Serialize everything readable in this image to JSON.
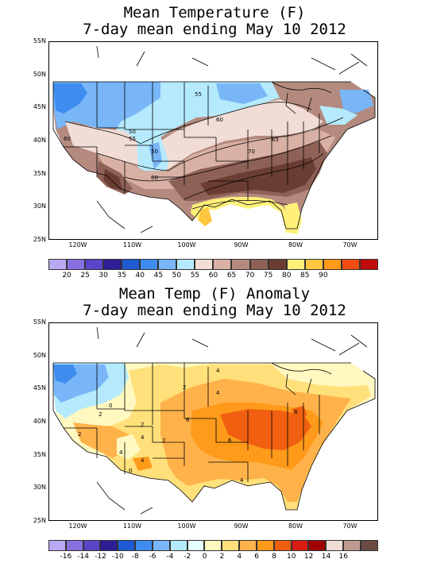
{
  "top": {
    "title_line1": "Mean Temperature (F)",
    "title_line2": "7-day mean ending May 10 2012",
    "lat_labels": [
      "55N",
      "50N",
      "45N",
      "40N",
      "35N",
      "30N",
      "25N"
    ],
    "lon_labels": [
      "120W",
      "110W",
      "100W",
      "90W",
      "80W",
      "70W"
    ],
    "contour_labels": [
      "55",
      "60",
      "65",
      "70",
      "50",
      "55",
      "50",
      "60",
      "60"
    ],
    "colorbar": {
      "colors": [
        "#b9a8f2",
        "#8870e0",
        "#5a46c8",
        "#2d1e96",
        "#1e5ad2",
        "#3e8cf0",
        "#78b6f7",
        "#b5eafd",
        "#f1dcd6",
        "#d8b0a4",
        "#b48a7e",
        "#8e6156",
        "#6a3d32",
        "#fff07a",
        "#ffc640",
        "#ff9a1a",
        "#f44c12",
        "#c00c0c"
      ],
      "labels": [
        "20",
        "25",
        "30",
        "35",
        "40",
        "45",
        "50",
        "55",
        "60",
        "65",
        "70",
        "75",
        "80",
        "85",
        "90"
      ]
    }
  },
  "bottom": {
    "title_line1": "Mean Temp (F) Anomaly",
    "title_line2": "7-day mean ending May 10 2012",
    "lat_labels": [
      "55N",
      "50N",
      "45N",
      "40N",
      "35N",
      "30N",
      "25N"
    ],
    "lon_labels": [
      "120W",
      "110W",
      "100W",
      "90W",
      "80W",
      "70W"
    ],
    "contour_labels": [
      "2",
      "4",
      "2",
      "0",
      "2",
      "4",
      "6",
      "6",
      "8",
      "4",
      "4",
      "2",
      "4",
      "4",
      "0",
      "2"
    ],
    "colorbar": {
      "colors": [
        "#b9a8f2",
        "#8870e0",
        "#5a46c8",
        "#2d1e96",
        "#1e5ad2",
        "#3e8cf0",
        "#78b6f7",
        "#b5eafd",
        "#e6ffff",
        "#fff8c0",
        "#ffe07a",
        "#ffb24a",
        "#ff9a1a",
        "#f06010",
        "#d81c10",
        "#a00000",
        "#f1dcd6",
        "#c09a90",
        "#6a4a42"
      ],
      "labels": [
        "-16",
        "-14",
        "-12",
        "-10",
        "-8",
        "-6",
        "-4",
        "-2",
        "0",
        "2",
        "4",
        "6",
        "8",
        "10",
        "12",
        "14",
        "16"
      ]
    }
  }
}
